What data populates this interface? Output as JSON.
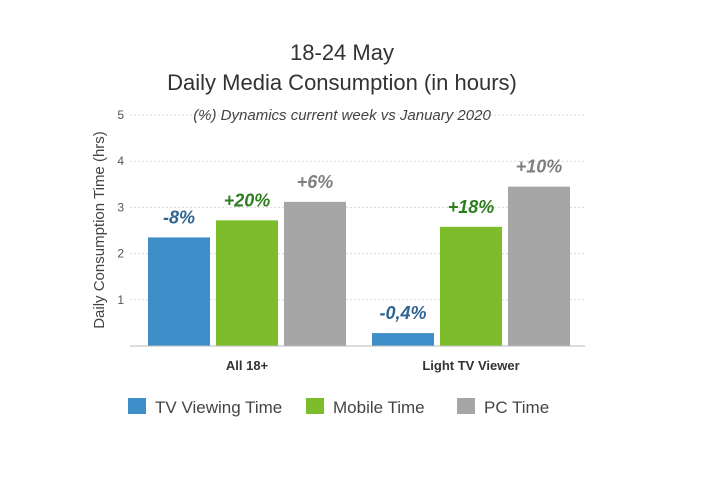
{
  "chart_data": {
    "type": "bar",
    "title": "18-24 May",
    "subtitle": "Daily Media Consumption (in hours)",
    "annotation": "(%) Dynamics current week  vs January 2020",
    "ylabel": "Daily Consumption Time (hrs)",
    "xlabel": "",
    "ylim": [
      0,
      5
    ],
    "yticks": [
      "1",
      "2",
      "3",
      "4",
      "5"
    ],
    "grid": true,
    "legend_position": "bottom",
    "categories": [
      "All 18+",
      "Light TV Viewer"
    ],
    "series": [
      {
        "name": "TV Viewing Time",
        "color": "#3d8ec9",
        "label_color": "#2e6592",
        "values": [
          2.35,
          0.28
        ],
        "labels": [
          "-8%",
          "-0,4%"
        ]
      },
      {
        "name": "Mobile Time",
        "color": "#7dbd2b",
        "label_color": "#2e7d1f",
        "values": [
          2.72,
          2.58
        ],
        "labels": [
          "+20%",
          "+18%"
        ]
      },
      {
        "name": "PC Time",
        "color": "#a6a6a6",
        "label_color": "#7f7f7f",
        "values": [
          3.12,
          3.45
        ],
        "labels": [
          "+6%",
          "+10%"
        ]
      }
    ]
  }
}
